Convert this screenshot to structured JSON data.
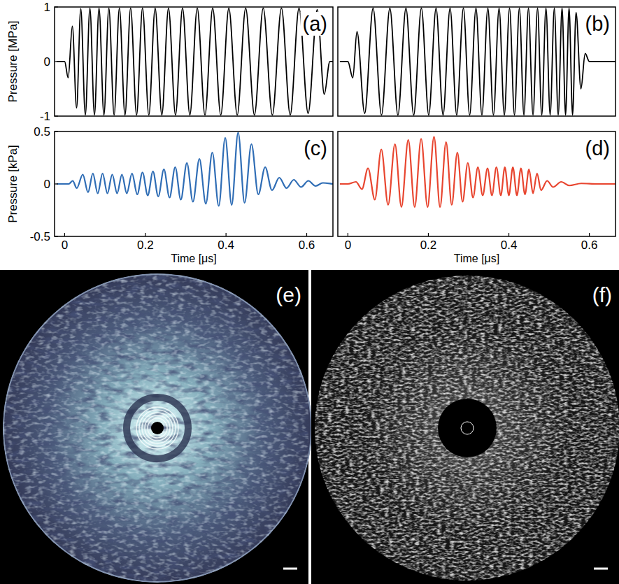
{
  "chart_data": [
    {
      "type": "line",
      "panel": "(a)",
      "ylabel": "Pressure [MPa]",
      "xlim": [
        -0.025,
        0.665
      ],
      "ylim": [
        -1,
        1
      ],
      "yticks": [
        -1,
        0,
        1
      ],
      "tick_labels": "y",
      "x": [
        -0.02,
        0,
        0.0087,
        0.0191,
        0.0296,
        0.04,
        0.0513,
        0.0626,
        0.0739,
        0.0852,
        0.0974,
        0.1096,
        0.1226,
        0.1357,
        0.1496,
        0.1635,
        0.1783,
        0.193,
        0.2087,
        0.2243,
        0.2409,
        0.2574,
        0.2748,
        0.2922,
        0.3104,
        0.3287,
        0.3478,
        0.367,
        0.387,
        0.407,
        0.4278,
        0.4487,
        0.4704,
        0.4922,
        0.5148,
        0.5374,
        0.5591,
        0.5809,
        0.6035,
        0.6261,
        0.6435,
        0.6574,
        0.665
      ],
      "series": [
        {
          "color": "#000000",
          "values": [
            0,
            0,
            -0.3,
            0.65,
            -0.85,
            0.97,
            -0.98,
            0.98,
            -0.98,
            0.98,
            -0.98,
            0.98,
            -0.98,
            0.98,
            -0.98,
            0.98,
            -0.98,
            0.98,
            -0.98,
            0.98,
            -0.98,
            0.98,
            -0.98,
            0.98,
            -0.98,
            0.98,
            -0.98,
            0.98,
            -0.98,
            0.98,
            -0.98,
            0.98,
            -0.98,
            0.98,
            -0.98,
            0.98,
            -0.98,
            0.98,
            -0.95,
            0.95,
            -0.6,
            0,
            0
          ]
        }
      ]
    },
    {
      "type": "line",
      "panel": "(b)",
      "xlim": [
        -0.025,
        0.665
      ],
      "ylim": [
        -1,
        1
      ],
      "tick_labels": false,
      "x": [
        -0.02,
        0,
        0.0122,
        0.0226,
        0.0417,
        0.0626,
        0.0835,
        0.1043,
        0.1243,
        0.1443,
        0.1635,
        0.1826,
        0.2009,
        0.2191,
        0.2365,
        0.2539,
        0.2704,
        0.287,
        0.3026,
        0.3183,
        0.333,
        0.3478,
        0.3617,
        0.3757,
        0.3887,
        0.4017,
        0.4139,
        0.4261,
        0.4374,
        0.4487,
        0.46,
        0.4713,
        0.4817,
        0.4922,
        0.5026,
        0.513,
        0.5226,
        0.5322,
        0.5409,
        0.5496,
        0.5583,
        0.567,
        0.5791,
        0.5896,
        0.6,
        0.665
      ],
      "series": [
        {
          "color": "#000000",
          "values": [
            0,
            0,
            -0.3,
            0.55,
            -0.95,
            0.98,
            -0.98,
            0.98,
            -0.98,
            0.98,
            -0.98,
            0.98,
            -0.98,
            0.98,
            -0.98,
            0.98,
            -0.98,
            0.98,
            -0.98,
            0.98,
            -0.98,
            0.98,
            -0.98,
            0.98,
            -0.98,
            0.98,
            -0.98,
            0.98,
            -0.98,
            0.98,
            -0.98,
            0.98,
            -0.98,
            0.98,
            -0.98,
            0.98,
            -0.98,
            0.98,
            -0.98,
            0.98,
            -0.98,
            0.9,
            -0.5,
            0.15,
            0,
            0
          ]
        }
      ]
    },
    {
      "type": "line",
      "panel": "(c)",
      "xlabel": "Time [μs]",
      "ylabel": "Pressure [kPa]",
      "xlim": [
        -0.025,
        0.665
      ],
      "ylim": [
        -0.5,
        0.5
      ],
      "xticks": [
        0,
        0.2,
        0.4,
        0.6
      ],
      "yticks": [
        -0.5,
        0,
        0.5
      ],
      "tick_labels": true,
      "x": [
        -0.02,
        0,
        0.01,
        0.02,
        0.03,
        0.045,
        0.058,
        0.07,
        0.082,
        0.094,
        0.106,
        0.118,
        0.13,
        0.142,
        0.154,
        0.167,
        0.18,
        0.193,
        0.206,
        0.219,
        0.232,
        0.246,
        0.26,
        0.274,
        0.288,
        0.303,
        0.318,
        0.334,
        0.35,
        0.366,
        0.382,
        0.398,
        0.414,
        0.43,
        0.446,
        0.463,
        0.48,
        0.497,
        0.514,
        0.532,
        0.55,
        0.568,
        0.586,
        0.604,
        0.622,
        0.64,
        0.665
      ],
      "series": [
        {
          "color": "#2f6db5",
          "values": [
            0,
            0,
            0,
            0.03,
            -0.04,
            0.09,
            -0.08,
            0.1,
            -0.09,
            0.1,
            -0.09,
            0.09,
            -0.09,
            0.09,
            -0.09,
            0.1,
            -0.1,
            0.11,
            -0.11,
            0.12,
            -0.12,
            0.14,
            -0.13,
            0.16,
            -0.15,
            0.2,
            -0.17,
            0.24,
            -0.19,
            0.3,
            -0.21,
            0.44,
            -0.2,
            0.49,
            -0.18,
            0.38,
            -0.1,
            0.16,
            -0.06,
            0.06,
            -0.04,
            0.04,
            -0.03,
            0.03,
            -0.02,
            0.01,
            0
          ]
        }
      ]
    },
    {
      "type": "line",
      "panel": "(d)",
      "xlabel": "Time [μs]",
      "xlim": [
        -0.025,
        0.665
      ],
      "ylim": [
        -0.5,
        0.5
      ],
      "xticks": [
        0,
        0.2,
        0.4,
        0.6
      ],
      "tick_labels": "x",
      "x": [
        -0.02,
        0,
        0.02,
        0.035,
        0.05,
        0.067,
        0.083,
        0.1,
        0.117,
        0.133,
        0.15,
        0.166,
        0.182,
        0.198,
        0.214,
        0.229,
        0.244,
        0.258,
        0.272,
        0.285,
        0.298,
        0.311,
        0.323,
        0.335,
        0.347,
        0.358,
        0.369,
        0.38,
        0.39,
        0.4,
        0.41,
        0.42,
        0.43,
        0.44,
        0.45,
        0.46,
        0.47,
        0.48,
        0.495,
        0.51,
        0.53,
        0.55,
        0.58,
        0.62,
        0.665
      ],
      "series": [
        {
          "color": "#e8452f",
          "values": [
            0,
            0,
            0.02,
            -0.05,
            0.15,
            -0.15,
            0.33,
            -0.2,
            0.38,
            -0.22,
            0.42,
            -0.22,
            0.43,
            -0.22,
            0.45,
            -0.22,
            0.4,
            -0.2,
            0.3,
            -0.17,
            0.2,
            -0.13,
            0.16,
            -0.11,
            0.15,
            -0.11,
            0.16,
            -0.11,
            0.16,
            -0.11,
            0.16,
            -0.11,
            0.15,
            -0.1,
            0.14,
            -0.09,
            0.1,
            -0.06,
            0.03,
            -0.03,
            0.02,
            -0.015,
            0.005,
            0,
            0
          ]
        }
      ]
    }
  ],
  "images": [
    {
      "panel": "(e)"
    },
    {
      "panel": "(f)"
    }
  ]
}
